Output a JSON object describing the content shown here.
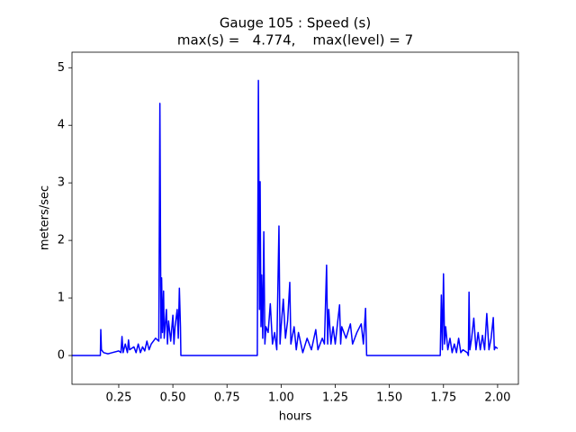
{
  "chart_data": {
    "type": "line",
    "title": "Gauge 105 : Speed (s)",
    "subtitle": "max(s) =   4.774,    max(level) = 7",
    "x_label": "hours",
    "y_label": "meters/sec",
    "xlim": [
      0.034,
      2.096
    ],
    "ylim": [
      -0.5,
      5.27
    ],
    "xticks": [
      {
        "value": 0.25,
        "label": "0.25"
      },
      {
        "value": 0.5,
        "label": "0.50"
      },
      {
        "value": 0.75,
        "label": "0.75"
      },
      {
        "value": 1.0,
        "label": "1.00"
      },
      {
        "value": 1.25,
        "label": "1.25"
      },
      {
        "value": 1.5,
        "label": "1.50"
      },
      {
        "value": 1.75,
        "label": "1.75"
      },
      {
        "value": 2.0,
        "label": "2.00"
      }
    ],
    "yticks": [
      0,
      1,
      2,
      3,
      4,
      5
    ],
    "grid": false,
    "series": [
      {
        "name": "speed",
        "color": "#0000ff",
        "x": [
          0.034,
          0.165,
          0.167,
          0.17,
          0.18,
          0.2,
          0.22,
          0.25,
          0.26,
          0.265,
          0.27,
          0.28,
          0.29,
          0.295,
          0.3,
          0.32,
          0.33,
          0.34,
          0.35,
          0.36,
          0.37,
          0.38,
          0.39,
          0.4,
          0.42,
          0.435,
          0.44,
          0.445,
          0.448,
          0.452,
          0.457,
          0.46,
          0.47,
          0.475,
          0.48,
          0.49,
          0.5,
          0.505,
          0.51,
          0.52,
          0.525,
          0.53,
          0.535,
          0.537,
          0.89,
          0.895,
          0.9,
          0.903,
          0.907,
          0.91,
          0.915,
          0.92,
          0.925,
          0.93,
          0.94,
          0.95,
          0.96,
          0.97,
          0.98,
          0.99,
          0.995,
          1.0,
          1.01,
          1.02,
          1.03,
          1.04,
          1.045,
          1.06,
          1.07,
          1.08,
          1.1,
          1.12,
          1.14,
          1.16,
          1.17,
          1.19,
          1.2,
          1.21,
          1.215,
          1.22,
          1.23,
          1.24,
          1.25,
          1.27,
          1.275,
          1.28,
          1.3,
          1.32,
          1.33,
          1.35,
          1.37,
          1.38,
          1.39,
          1.395,
          1.735,
          1.74,
          1.745,
          1.75,
          1.755,
          1.76,
          1.77,
          1.78,
          1.79,
          1.8,
          1.81,
          1.82,
          1.83,
          1.84,
          1.86,
          1.865,
          1.868,
          1.872,
          1.88,
          1.89,
          1.9,
          1.91,
          1.92,
          1.93,
          1.94,
          1.95,
          1.96,
          1.97,
          1.98,
          1.985,
          1.99,
          2.0
        ],
        "values": [
          0,
          0,
          0.45,
          0.1,
          0.05,
          0.03,
          0.05,
          0.08,
          0.05,
          0.33,
          0.05,
          0.2,
          0.05,
          0.27,
          0.1,
          0.15,
          0.05,
          0.2,
          0.05,
          0.15,
          0.08,
          0.25,
          0.1,
          0.2,
          0.3,
          0.25,
          4.38,
          0.3,
          1.35,
          0.4,
          1.12,
          0.3,
          0.8,
          0.2,
          0.6,
          0.25,
          0.7,
          0.2,
          0.5,
          0.8,
          0.3,
          1.17,
          0.5,
          0,
          0,
          4.78,
          0.8,
          3.02,
          0.5,
          1.4,
          0.3,
          2.15,
          0.2,
          0.5,
          0.4,
          0.9,
          0.2,
          0.4,
          0.1,
          2.25,
          0.2,
          0.5,
          0.98,
          0.3,
          0.6,
          1.27,
          0.2,
          0.5,
          0.1,
          0.4,
          0.05,
          0.3,
          0.1,
          0.45,
          0.1,
          0.3,
          0.2,
          1.57,
          0.2,
          0.8,
          0.2,
          0.5,
          0.2,
          0.88,
          0.2,
          0.5,
          0.3,
          0.55,
          0.2,
          0.4,
          0.55,
          0.2,
          0.82,
          0,
          0,
          1.05,
          0.1,
          1.42,
          0.2,
          0.5,
          0.1,
          0.3,
          0.05,
          0.2,
          0.05,
          0.3,
          0.05,
          0.1,
          0.05,
          0,
          1.1,
          0.1,
          0.3,
          0.65,
          0.1,
          0.4,
          0.1,
          0.35,
          0.1,
          0.73,
          0.1,
          0.3,
          0.66,
          0.1,
          0.15,
          0.12
        ]
      }
    ]
  }
}
